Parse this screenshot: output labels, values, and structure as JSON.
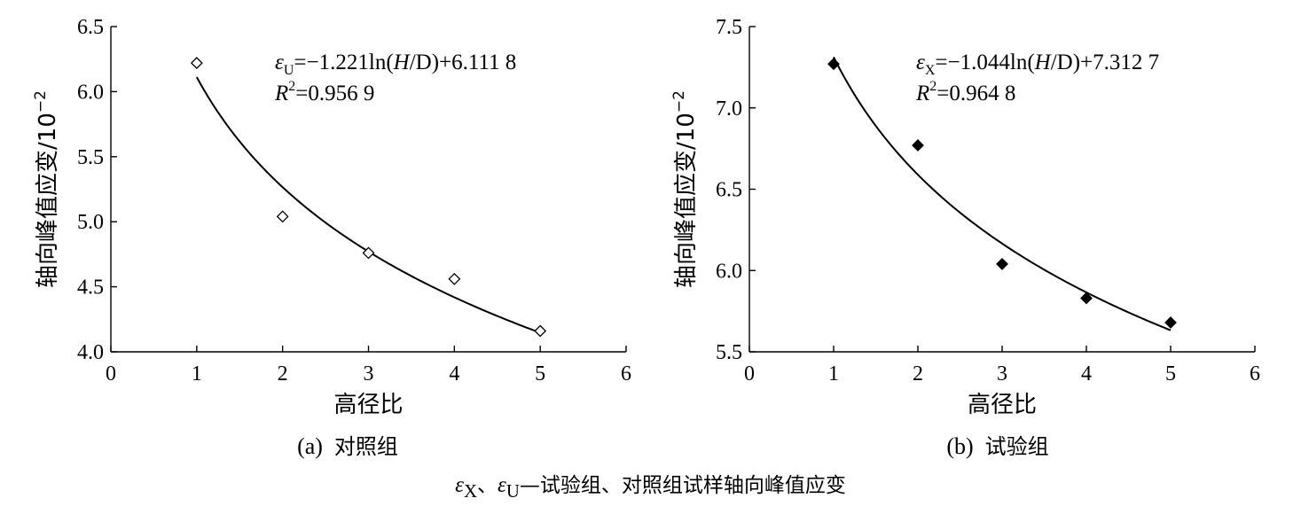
{
  "chart_data": [
    {
      "type": "scatter",
      "panel_caption": "(a)  对照组",
      "xlabel": "高径比",
      "ylabel": "轴向峰值应变/10",
      "ylabel_exp": "−2",
      "xlim": [
        0,
        6
      ],
      "ylim": [
        4.0,
        6.5
      ],
      "xticks": [
        "0",
        "1",
        "2",
        "3",
        "4",
        "5",
        "6"
      ],
      "yticks": [
        "4.0",
        "4.5",
        "5.0",
        "5.5",
        "6.0",
        "6.5"
      ],
      "marker": "open-diamond",
      "x": [
        1,
        2,
        3,
        4,
        5
      ],
      "y": [
        6.22,
        5.04,
        4.76,
        4.56,
        4.16
      ],
      "fit": {
        "a": -1.221,
        "b": 6.1118
      },
      "eq_symbol": "ε",
      "eq_sub": "U",
      "eq_rest": "=−1.221ln(",
      "eq_H": "H",
      "eq_tail": "/D)+6.111 8",
      "r2_label": "R",
      "r2_value": "=0.956 9"
    },
    {
      "type": "scatter",
      "panel_caption": "(b)  试验组",
      "xlabel": "高径比",
      "ylabel": "轴向峰值应变/10",
      "ylabel_exp": "−2",
      "xlim": [
        0,
        6
      ],
      "ylim": [
        5.5,
        7.5
      ],
      "xticks": [
        "0",
        "1",
        "2",
        "3",
        "4",
        "5",
        "6"
      ],
      "yticks": [
        "5.5",
        "6.0",
        "6.5",
        "7.0",
        "7.5"
      ],
      "marker": "filled-diamond",
      "x": [
        1,
        2,
        3,
        4,
        5
      ],
      "y": [
        7.27,
        6.77,
        6.04,
        5.83,
        5.68
      ],
      "fit": {
        "a": -1.044,
        "b": 7.3127
      },
      "eq_symbol": "ε",
      "eq_sub": "X",
      "eq_rest": "=−1.044ln(",
      "eq_H": "H",
      "eq_tail": "/D)+7.312 7",
      "r2_label": "R",
      "r2_value": "=0.964 8"
    }
  ],
  "footnote": {
    "sym1": "ε",
    "sub1": "X",
    "sep": "、",
    "sym2": "ε",
    "sub2": "U",
    "text": "—试验组、对照组试样轴向峰值应变"
  }
}
